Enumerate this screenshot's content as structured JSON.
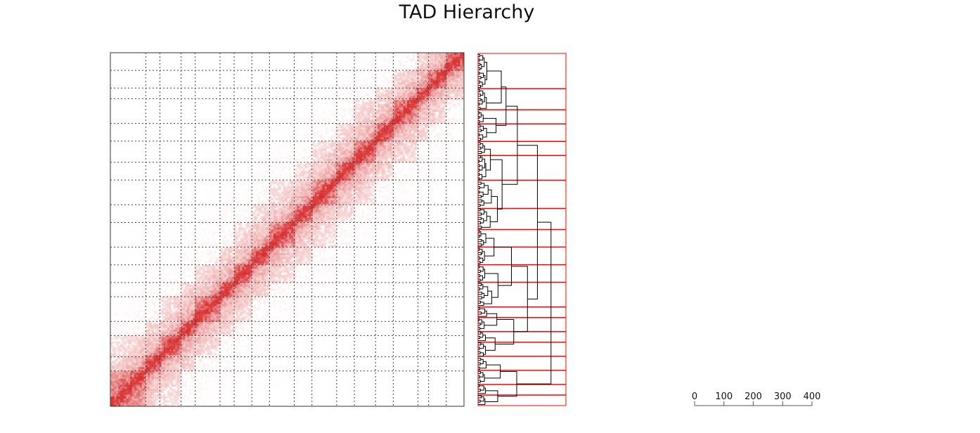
{
  "chart_data": {
    "type": "heatmap",
    "title": "TAD Hierarchy",
    "heatmap": {
      "colormap": "white-to-red",
      "color_hex": "#d62728",
      "bins": 180,
      "domain_boundaries": [
        0.0,
        0.1,
        0.14,
        0.2,
        0.24,
        0.31,
        0.35,
        0.4,
        0.45,
        0.52,
        0.57,
        0.64,
        0.69,
        0.75,
        0.8,
        0.87,
        0.9,
        0.95,
        1.0
      ],
      "grid_style": "dotted",
      "diagonal_emphasis": true
    },
    "dendrogram": {
      "orientation": "right",
      "leaf_count": 160,
      "cluster_box_color": "#ff0000",
      "cluster_boundaries": [
        0.0,
        0.1,
        0.16,
        0.2,
        0.25,
        0.29,
        0.36,
        0.44,
        0.5,
        0.55,
        0.6,
        0.65,
        0.72,
        0.75,
        0.79,
        0.82,
        0.86,
        0.9,
        0.94,
        0.97,
        1.0
      ],
      "xlim": [
        0,
        400
      ],
      "scale_ticks": [
        "0",
        "100",
        "200",
        "300",
        "400"
      ]
    },
    "grid": true,
    "legend": "none"
  }
}
